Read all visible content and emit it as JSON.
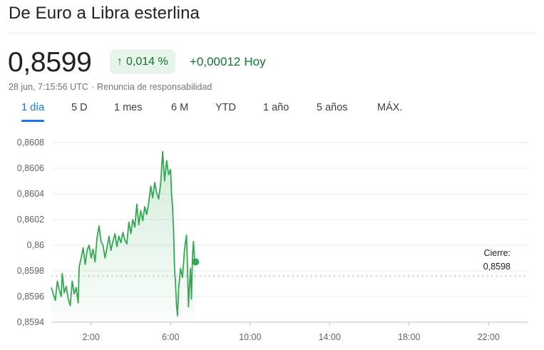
{
  "header": {
    "title": "De Euro a Libra esterlina"
  },
  "quote": {
    "price": "0,8599",
    "change_percent": "0,014 %",
    "change_arrow": "↑",
    "change_abs": "+0,00012",
    "change_period": "Hoy",
    "timestamp": "28 jun, 7:15:56 UTC",
    "separator": "·",
    "disclaimer": "Renuncia de responsabilidad",
    "positive_color": "#137333",
    "badge_bg": "#e6f4ea"
  },
  "ranges": [
    {
      "label": "1 día",
      "active": true
    },
    {
      "label": "5 D",
      "active": false
    },
    {
      "label": "1 mes",
      "active": false
    },
    {
      "label": "6 M",
      "active": false
    },
    {
      "label": "YTD",
      "active": false
    },
    {
      "label": "1 año",
      "active": false
    },
    {
      "label": "5 años",
      "active": false
    },
    {
      "label": "MÁX.",
      "active": false
    }
  ],
  "chart_data": {
    "type": "line",
    "x_unit": "hours UTC",
    "xlim": [
      0,
      24
    ],
    "ylim": [
      0.8594,
      0.8608
    ],
    "y_ticks": [
      {
        "value": 0.8608,
        "label": "0,8608"
      },
      {
        "value": 0.8606,
        "label": "0,8606"
      },
      {
        "value": 0.8604,
        "label": "0,8604"
      },
      {
        "value": 0.8602,
        "label": "0,8602"
      },
      {
        "value": 0.86,
        "label": "0,86"
      },
      {
        "value": 0.8598,
        "label": "0,8598"
      },
      {
        "value": 0.8596,
        "label": "0,8596"
      },
      {
        "value": 0.8594,
        "label": "0,8594"
      }
    ],
    "x_ticks": [
      {
        "value": 2,
        "label": "2:00"
      },
      {
        "value": 6,
        "label": "6:00"
      },
      {
        "value": 10,
        "label": "10:00"
      },
      {
        "value": 14,
        "label": "14:00"
      },
      {
        "value": 18,
        "label": "18:00"
      },
      {
        "value": 22,
        "label": "22:00"
      }
    ],
    "previous_close": {
      "value": 0.85976,
      "label_line1": "Cierre:",
      "label_line2": "0,8598"
    },
    "line_color": "#34a853",
    "grid": true,
    "series": [
      {
        "points": [
          [
            0.0,
            0.85967
          ],
          [
            0.1,
            0.85962
          ],
          [
            0.2,
            0.85957
          ],
          [
            0.3,
            0.85972
          ],
          [
            0.4,
            0.85965
          ],
          [
            0.5,
            0.8596
          ],
          [
            0.55,
            0.85978
          ],
          [
            0.65,
            0.85963
          ],
          [
            0.75,
            0.85968
          ],
          [
            0.85,
            0.85958
          ],
          [
            0.95,
            0.85953
          ],
          [
            1.05,
            0.85972
          ],
          [
            1.15,
            0.85962
          ],
          [
            1.25,
            0.85967
          ],
          [
            1.35,
            0.85955
          ],
          [
            1.4,
            0.85983
          ],
          [
            1.5,
            0.8599
          ],
          [
            1.6,
            0.85998
          ],
          [
            1.7,
            0.85985
          ],
          [
            1.8,
            0.85996
          ],
          [
            1.9,
            0.86
          ],
          [
            2.0,
            0.8599
          ],
          [
            2.1,
            0.85997
          ],
          [
            2.2,
            0.85987
          ],
          [
            2.3,
            0.86006
          ],
          [
            2.4,
            0.86015
          ],
          [
            2.5,
            0.86003
          ],
          [
            2.6,
            0.86
          ],
          [
            2.7,
            0.8599
          ],
          [
            2.8,
            0.85998
          ],
          [
            2.9,
            0.86007
          ],
          [
            3.0,
            0.85996
          ],
          [
            3.1,
            0.86003
          ],
          [
            3.2,
            0.86009
          ],
          [
            3.3,
            0.85999
          ],
          [
            3.4,
            0.86007
          ],
          [
            3.5,
            0.86002
          ],
          [
            3.6,
            0.8601
          ],
          [
            3.7,
            0.86004
          ],
          [
            3.8,
            0.86001
          ],
          [
            3.9,
            0.86018
          ],
          [
            4.0,
            0.86009
          ],
          [
            4.1,
            0.8602
          ],
          [
            4.2,
            0.86014
          ],
          [
            4.3,
            0.86032
          ],
          [
            4.4,
            0.86016
          ],
          [
            4.5,
            0.86027
          ],
          [
            4.6,
            0.86019
          ],
          [
            4.7,
            0.8603
          ],
          [
            4.8,
            0.86024
          ],
          [
            4.9,
            0.86033
          ],
          [
            5.0,
            0.86046
          ],
          [
            5.1,
            0.86037
          ],
          [
            5.2,
            0.86049
          ],
          [
            5.3,
            0.86041
          ],
          [
            5.4,
            0.86036
          ],
          [
            5.5,
            0.86048
          ],
          [
            5.6,
            0.86073
          ],
          [
            5.7,
            0.8605
          ],
          [
            5.8,
            0.86066
          ],
          [
            5.9,
            0.86055
          ],
          [
            6.0,
            0.86059
          ],
          [
            6.05,
            0.8604
          ],
          [
            6.1,
            0.8603
          ],
          [
            6.15,
            0.86012
          ],
          [
            6.2,
            0.85982
          ],
          [
            6.25,
            0.8597
          ],
          [
            6.3,
            0.85953
          ],
          [
            6.35,
            0.85945
          ],
          [
            6.4,
            0.85965
          ],
          [
            6.5,
            0.85982
          ],
          [
            6.6,
            0.85975
          ],
          [
            6.7,
            0.85997
          ],
          [
            6.8,
            0.86008
          ],
          [
            6.85,
            0.85985
          ],
          [
            6.9,
            0.85952
          ],
          [
            6.95,
            0.85968
          ],
          [
            7.0,
            0.85982
          ],
          [
            7.05,
            0.85958
          ],
          [
            7.1,
            0.8599
          ],
          [
            7.15,
            0.86003
          ],
          [
            7.2,
            0.8599
          ],
          [
            7.26,
            0.85987
          ]
        ]
      }
    ]
  }
}
